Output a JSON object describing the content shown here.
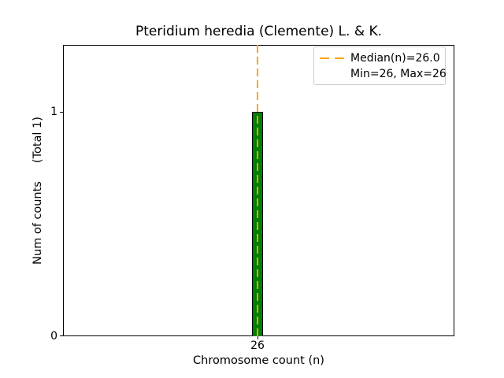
{
  "chart_data": {
    "type": "bar",
    "title": "Pteridium heredia (Clemente) L. & K.",
    "xlabel": "Chromosome count (n)",
    "ylabel": "Num of counts     (Total 1)",
    "categories": [
      26
    ],
    "values": [
      1
    ],
    "total_counts": 1,
    "median": 26.0,
    "min": 26,
    "max": 26,
    "xticks": [
      "26"
    ],
    "yticks": [
      "0",
      "1"
    ],
    "ylim": [
      0,
      1.3
    ],
    "grid": false,
    "bar_color": "#008000",
    "bar_edge_color": "#000000",
    "median_line_color": "#FFA500",
    "legend": {
      "position": "upper-right",
      "entries": [
        "Median(n)=26.0",
        "Min=26, Max=26"
      ]
    }
  }
}
